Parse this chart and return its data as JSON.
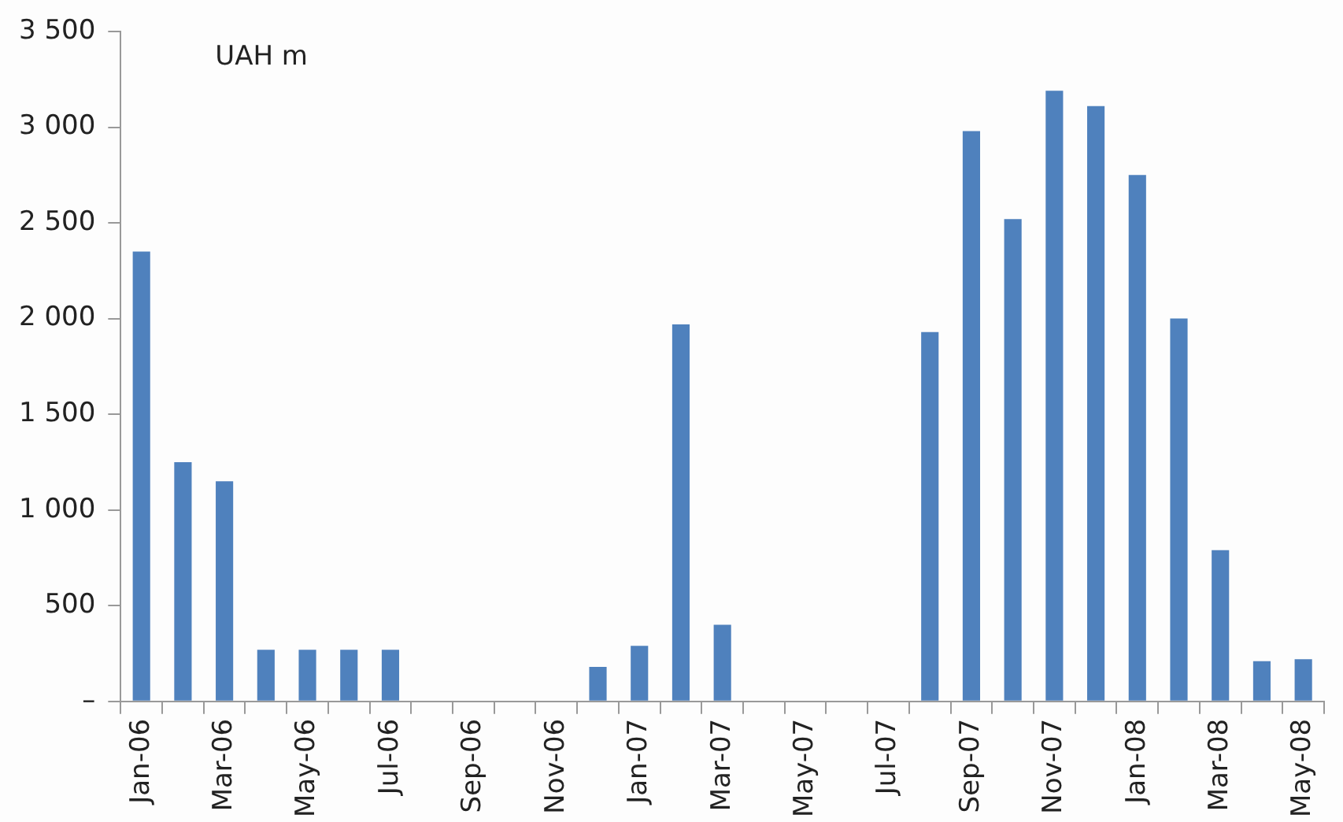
{
  "chart_data": {
    "type": "bar",
    "annotations": [
      "UAH m"
    ],
    "categories": [
      "Jan-06",
      null,
      "Mar-06",
      null,
      "May-06",
      null,
      "Jul-06",
      null,
      "Sep-06",
      null,
      "Nov-06",
      null,
      "Jan-07",
      null,
      "Mar-07",
      null,
      "May-07",
      null,
      "Jul-07",
      null,
      "Sep-07",
      null,
      "Nov-07",
      null,
      "Jan-08",
      null,
      "Mar-08",
      null,
      "May-08"
    ],
    "values": [
      2350,
      1250,
      1150,
      270,
      270,
      270,
      270,
      0,
      0,
      0,
      0,
      180,
      290,
      1970,
      400,
      0,
      0,
      0,
      0,
      1930,
      2980,
      2520,
      3190,
      3110,
      2750,
      2000,
      790,
      210,
      220
    ],
    "color": "#4f81bd",
    "ylim": [
      0,
      3500
    ],
    "yticks": [
      {
        "value": 0,
        "label": "–"
      },
      500,
      {
        "value": 1000,
        "label": "1 000"
      },
      {
        "value": 1500,
        "label": "1 500"
      },
      {
        "value": 2000,
        "label": "2 000"
      },
      {
        "value": 2500,
        "label": "2 500"
      },
      {
        "value": 3000,
        "label": "3 000"
      },
      {
        "value": 3500,
        "label": "3 500"
      }
    ],
    "grid": false,
    "legend": false
  }
}
